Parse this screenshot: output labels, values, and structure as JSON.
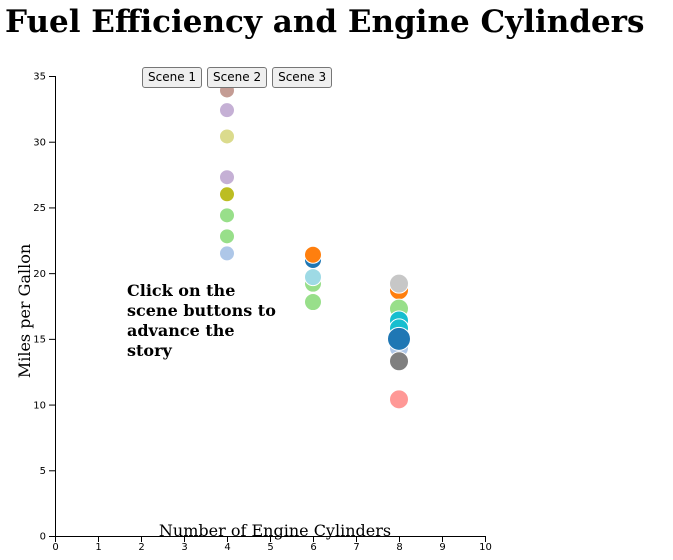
{
  "title": "Fuel Efficiency and Engine Cylinders",
  "scene_buttons": [
    "Scene 1",
    "Scene 2",
    "Scene 3"
  ],
  "annotation": "Click on the scene buttons to advance the story",
  "chart_data": {
    "type": "scatter",
    "title": "Fuel Efficiency and Engine Cylinders",
    "xlabel": "Number of Engine Cylinders",
    "ylabel": "Miles per Gallon",
    "xlim": [
      0,
      10
    ],
    "ylim": [
      0,
      35
    ],
    "x_ticks": [
      0,
      1,
      2,
      3,
      4,
      5,
      6,
      7,
      8,
      9,
      10
    ],
    "y_ticks": [
      0,
      5,
      10,
      15,
      20,
      25,
      30,
      35
    ],
    "grid": false,
    "points": [
      {
        "x": 4,
        "y": 33.9,
        "color": "#c49c94",
        "r": "small"
      },
      {
        "x": 4,
        "y": 32.4,
        "color": "#c5b0d5",
        "r": "small"
      },
      {
        "x": 4,
        "y": 30.4,
        "color": "#dbdb8d",
        "r": "small"
      },
      {
        "x": 4,
        "y": 27.3,
        "color": "#c5b0d5",
        "r": "small"
      },
      {
        "x": 4,
        "y": 26.0,
        "color": "#bcbd22",
        "r": "small"
      },
      {
        "x": 4,
        "y": 24.4,
        "color": "#98df8a",
        "r": "small"
      },
      {
        "x": 4,
        "y": 22.8,
        "color": "#98df8a",
        "r": "small"
      },
      {
        "x": 4,
        "y": 21.5,
        "color": "#aec7e8",
        "r": "small"
      },
      {
        "x": 6,
        "y": 21.0,
        "color": "#1f77b4",
        "r": "medium"
      },
      {
        "x": 6,
        "y": 21.4,
        "color": "#ff7f0e",
        "r": "medium"
      },
      {
        "x": 6,
        "y": 19.2,
        "color": "#98df8a",
        "r": "medium"
      },
      {
        "x": 6,
        "y": 19.7,
        "color": "#9edae5",
        "r": "medium"
      },
      {
        "x": 6,
        "y": 17.8,
        "color": "#98df8a",
        "r": "medium"
      },
      {
        "x": 8,
        "y": 18.7,
        "color": "#ff7f0e",
        "r": "large"
      },
      {
        "x": 8,
        "y": 19.2,
        "color": "#c7c7c7",
        "r": "large"
      },
      {
        "x": 8,
        "y": 17.3,
        "color": "#98df8a",
        "r": "large"
      },
      {
        "x": 8,
        "y": 16.4,
        "color": "#17becf",
        "r": "large"
      },
      {
        "x": 8,
        "y": 15.8,
        "color": "#17becf",
        "r": "large"
      },
      {
        "x": 8,
        "y": 14.3,
        "color": "#aec7e8",
        "r": "large"
      },
      {
        "x": 8,
        "y": 15.0,
        "color": "#1f77b4",
        "r": "xlarge"
      },
      {
        "x": 8,
        "y": 13.3,
        "color": "#7f7f7f",
        "r": "large"
      },
      {
        "x": 8,
        "y": 10.4,
        "color": "#ff9896",
        "r": "large"
      }
    ]
  }
}
